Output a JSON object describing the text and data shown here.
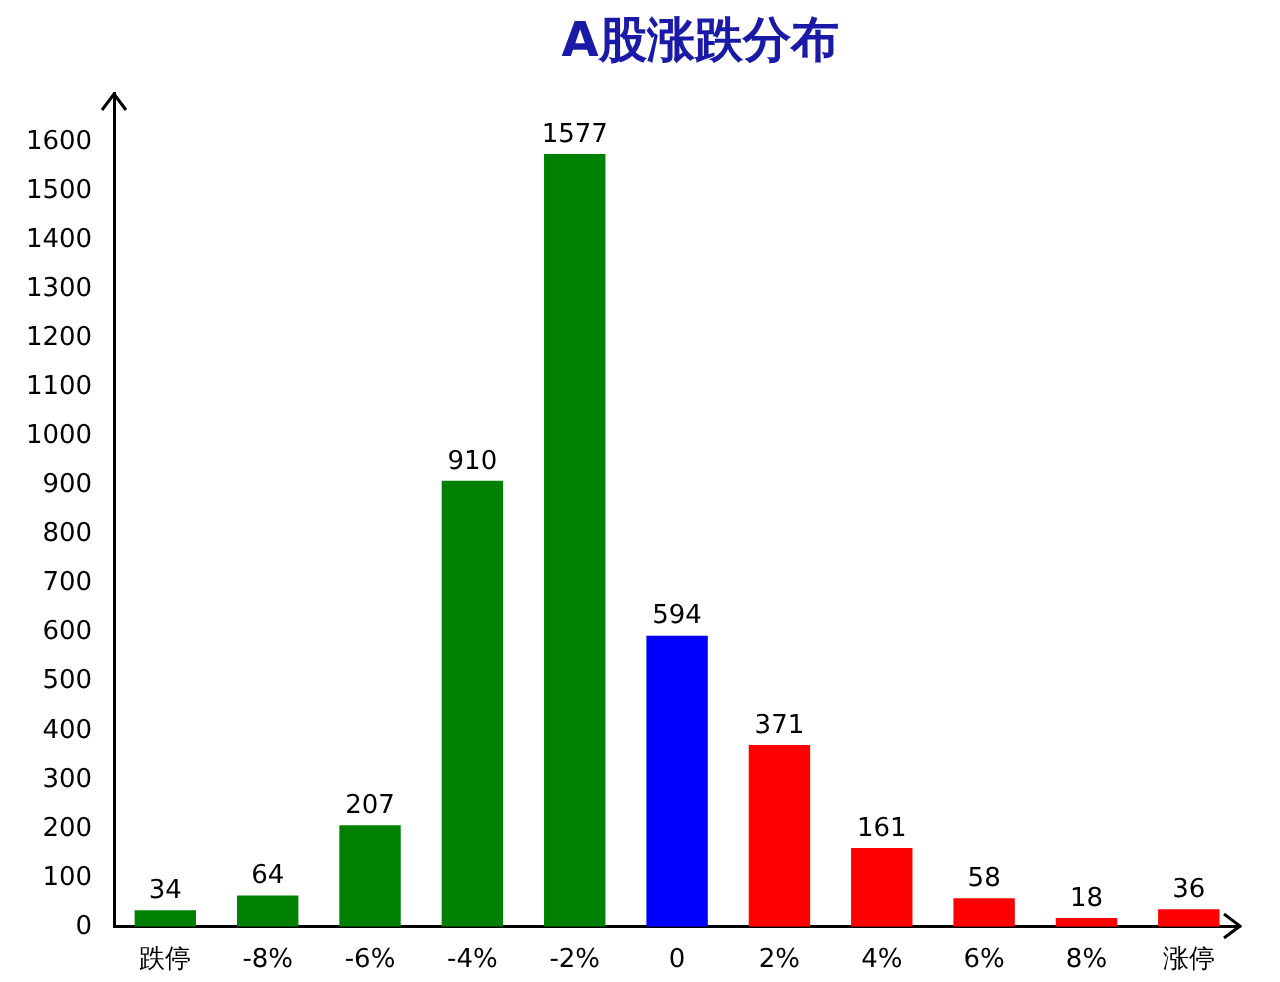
{
  "chart_data": {
    "type": "bar",
    "title": "A股涨跌分布",
    "categories": [
      "跌停",
      "-8%",
      "-6%",
      "-4%",
      "-2%",
      "0",
      "2%",
      "4%",
      "6%",
      "8%",
      "涨停"
    ],
    "values": [
      34,
      64,
      207,
      910,
      1577,
      594,
      371,
      161,
      58,
      18,
      36
    ],
    "colors": [
      "#008000",
      "#008000",
      "#008000",
      "#008000",
      "#008000",
      "#0000ff",
      "#ff0000",
      "#ff0000",
      "#ff0000",
      "#ff0000",
      "#ff0000"
    ],
    "ylim": [
      0,
      1700
    ],
    "yticks": [
      0,
      100,
      200,
      300,
      400,
      500,
      600,
      700,
      800,
      900,
      1000,
      1100,
      1200,
      1300,
      1400,
      1500,
      1600
    ],
    "grid": false,
    "legend": false,
    "data_labels": true
  }
}
